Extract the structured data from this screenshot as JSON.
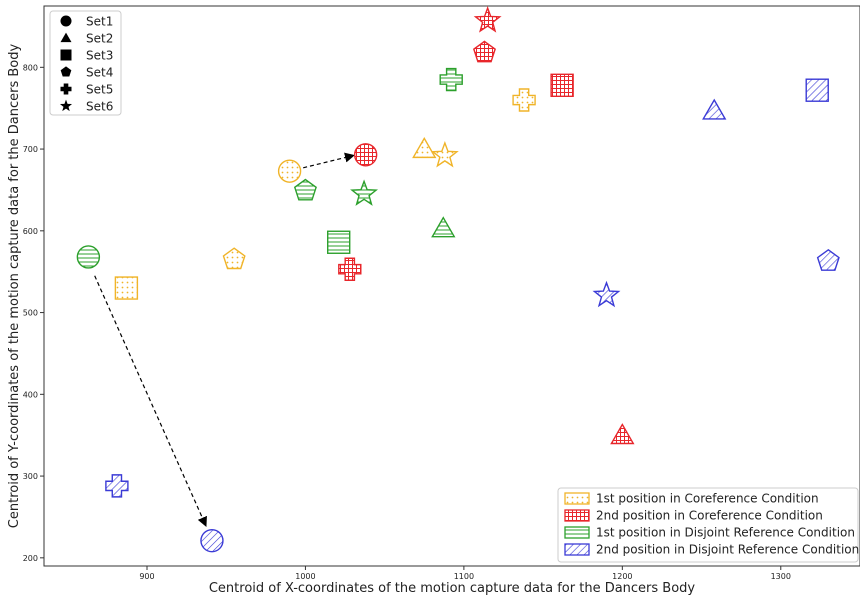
{
  "chart_data": {
    "type": "scatter",
    "title": "",
    "xlabel": "Centroid of X-coordinates of the motion capture data for the Dancers Body",
    "ylabel": "Centroid of Y-coordinates of the motion capture data for the Dancers Body",
    "xlim": [
      835,
      1350
    ],
    "ylim": [
      190,
      875
    ],
    "xticks": [
      900,
      1000,
      1100,
      1200,
      1300
    ],
    "yticks": [
      200,
      300,
      400,
      500,
      600,
      700,
      800
    ],
    "grid": false,
    "shape_legend": {
      "placement": "top-left",
      "items": [
        {
          "label": "Set1",
          "shape": "circle"
        },
        {
          "label": "Set2",
          "shape": "triangle"
        },
        {
          "label": "Set3",
          "shape": "square"
        },
        {
          "label": "Set4",
          "shape": "pentagon"
        },
        {
          "label": "Set5",
          "shape": "plus"
        },
        {
          "label": "Set6",
          "shape": "star"
        }
      ]
    },
    "condition_legend": {
      "placement": "bottom-right",
      "items": [
        {
          "label": "1st position in Coreference Condition",
          "color": "#f0b429",
          "hatch": "dots"
        },
        {
          "label": "2nd position in Coreference Condition",
          "color": "#e8262b",
          "hatch": "grid"
        },
        {
          "label": "1st position in Disjoint Reference Condition",
          "color": "#2ca02c",
          "hatch": "horizontal"
        },
        {
          "label": "2nd position in Disjoint Reference Condition",
          "color": "#3b3bd6",
          "hatch": "diagonal"
        }
      ]
    },
    "series": [
      {
        "condition": 0,
        "points": [
          {
            "set": "Set1",
            "x": 990,
            "y": 673
          },
          {
            "set": "Set2",
            "x": 1075,
            "y": 700
          },
          {
            "set": "Set3",
            "x": 887,
            "y": 530
          },
          {
            "set": "Set4",
            "x": 955,
            "y": 565
          },
          {
            "set": "Set5",
            "x": 1138,
            "y": 760
          },
          {
            "set": "Set6",
            "x": 1088,
            "y": 692
          }
        ]
      },
      {
        "condition": 1,
        "points": [
          {
            "set": "Set1",
            "x": 1038,
            "y": 693
          },
          {
            "set": "Set2",
            "x": 1200,
            "y": 350
          },
          {
            "set": "Set3",
            "x": 1162,
            "y": 778
          },
          {
            "set": "Set4",
            "x": 1113,
            "y": 818
          },
          {
            "set": "Set5",
            "x": 1028,
            "y": 553
          },
          {
            "set": "Set6",
            "x": 1115,
            "y": 857
          }
        ]
      },
      {
        "condition": 2,
        "points": [
          {
            "set": "Set1",
            "x": 863,
            "y": 568
          },
          {
            "set": "Set2",
            "x": 1087,
            "y": 603
          },
          {
            "set": "Set3",
            "x": 1021,
            "y": 586
          },
          {
            "set": "Set4",
            "x": 1000,
            "y": 649
          },
          {
            "set": "Set5",
            "x": 1092,
            "y": 785
          },
          {
            "set": "Set6",
            "x": 1037,
            "y": 645
          }
        ]
      },
      {
        "condition": 3,
        "points": [
          {
            "set": "Set1",
            "x": 941,
            "y": 221
          },
          {
            "set": "Set2",
            "x": 1258,
            "y": 747
          },
          {
            "set": "Set3",
            "x": 1323,
            "y": 772
          },
          {
            "set": "Set4",
            "x": 1330,
            "y": 563
          },
          {
            "set": "Set5",
            "x": 881,
            "y": 288
          },
          {
            "set": "Set6",
            "x": 1190,
            "y": 521
          }
        ]
      }
    ],
    "arrows": [
      {
        "from": [
          990,
          673
        ],
        "to": [
          1030,
          692
        ]
      },
      {
        "from": [
          867,
          545
        ],
        "to": [
          937,
          240
        ]
      }
    ]
  }
}
